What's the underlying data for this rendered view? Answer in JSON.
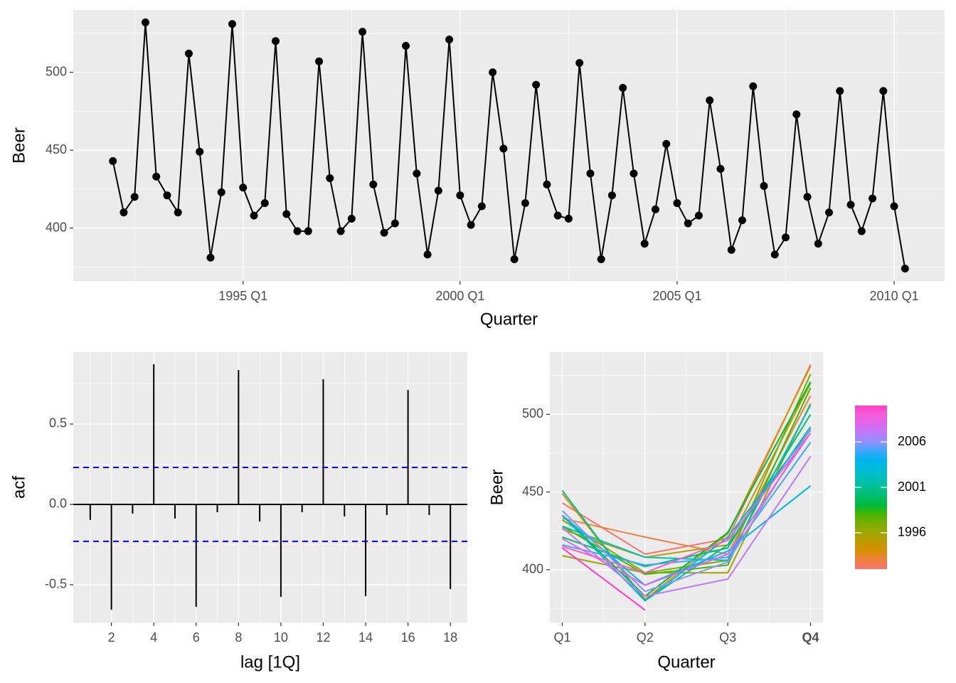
{
  "chart_data": [
    {
      "type": "line",
      "x_label": "Quarter",
      "y_label": "Beer",
      "color": "#000000",
      "categories": [
        "1992 Q1",
        "1992 Q2",
        "1992 Q3",
        "1992 Q4",
        "1993 Q1",
        "1993 Q2",
        "1993 Q3",
        "1993 Q4",
        "1994 Q1",
        "1994 Q2",
        "1994 Q3",
        "1994 Q4",
        "1995 Q1",
        "1995 Q2",
        "1995 Q3",
        "1995 Q4",
        "1996 Q1",
        "1996 Q2",
        "1996 Q3",
        "1996 Q4",
        "1997 Q1",
        "1997 Q2",
        "1997 Q3",
        "1997 Q4",
        "1998 Q1",
        "1998 Q2",
        "1998 Q3",
        "1998 Q4",
        "1999 Q1",
        "1999 Q2",
        "1999 Q3",
        "1999 Q4",
        "2000 Q1",
        "2000 Q2",
        "2000 Q3",
        "2000 Q4",
        "2001 Q1",
        "2001 Q2",
        "2001 Q3",
        "2001 Q4",
        "2002 Q1",
        "2002 Q2",
        "2002 Q3",
        "2002 Q4",
        "2003 Q1",
        "2003 Q2",
        "2003 Q3",
        "2003 Q4",
        "2004 Q1",
        "2004 Q2",
        "2004 Q3",
        "2004 Q4",
        "2005 Q1",
        "2005 Q2",
        "2005 Q3",
        "2005 Q4",
        "2006 Q1",
        "2006 Q2",
        "2006 Q3",
        "2006 Q4",
        "2007 Q1",
        "2007 Q2",
        "2007 Q3",
        "2007 Q4",
        "2008 Q1",
        "2008 Q2",
        "2008 Q3",
        "2008 Q4",
        "2009 Q1",
        "2009 Q2",
        "2009 Q3",
        "2009 Q4",
        "2010 Q1",
        "2010 Q2"
      ],
      "values": [
        443,
        410,
        420,
        532,
        433,
        421,
        410,
        512,
        449,
        381,
        423,
        531,
        426,
        408,
        416,
        520,
        409,
        398,
        398,
        507,
        432,
        398,
        406,
        526,
        428,
        397,
        403,
        517,
        435,
        383,
        424,
        521,
        421,
        402,
        414,
        500,
        451,
        380,
        416,
        492,
        428,
        408,
        406,
        506,
        435,
        380,
        421,
        490,
        435,
        390,
        412,
        454,
        416,
        403,
        408,
        482,
        438,
        386,
        405,
        491,
        427,
        383,
        394,
        473,
        420,
        390,
        410,
        488,
        415,
        398,
        419,
        488,
        414,
        374
      ],
      "xticks": [
        "1995 Q1",
        "2000 Q1",
        "2005 Q1",
        "2010 Q1"
      ],
      "ylim": [
        366,
        540
      ],
      "yticks": [
        400,
        450,
        500
      ],
      "grid": true
    },
    {
      "type": "acf",
      "x_label": "lag [1Q]",
      "y_label": "acf",
      "color": "#000000",
      "x": [
        1,
        2,
        3,
        4,
        5,
        6,
        7,
        8,
        9,
        10,
        11,
        12,
        13,
        14,
        15,
        16,
        17,
        18
      ],
      "values": [
        -0.097,
        -0.655,
        -0.058,
        0.872,
        -0.088,
        -0.637,
        -0.049,
        0.836,
        -0.106,
        -0.575,
        -0.049,
        0.779,
        -0.075,
        -0.571,
        -0.066,
        0.712,
        -0.066,
        -0.527
      ],
      "xlim": [
        0.2,
        18.8
      ],
      "xticks": [
        2,
        4,
        6,
        8,
        10,
        12,
        14,
        16,
        18
      ],
      "ylim": [
        -0.735,
        0.947
      ],
      "yticks": [
        {
          "value": -0.5,
          "label": "-0.5"
        },
        {
          "value": 0,
          "label": "0.0"
        },
        0.5
      ],
      "ci_lines": [
        0.23,
        -0.23
      ],
      "ci_color": "#0000FF",
      "grid": true
    },
    {
      "type": "seasonal",
      "x_label": "Quarter",
      "y_label": "Beer",
      "categories": [
        "Q1",
        "Q2",
        "Q3",
        "Q4"
      ],
      "series": [
        {
          "name": "1992",
          "color": "#F8766D",
          "values": [
            443,
            410,
            420,
            532
          ]
        },
        {
          "name": "1993",
          "color": "#EE8040",
          "values": [
            433,
            421,
            410,
            512
          ]
        },
        {
          "name": "1994",
          "color": "#D89000",
          "values": [
            449,
            381,
            423,
            531
          ]
        },
        {
          "name": "1995",
          "color": "#BF9A00",
          "values": [
            426,
            408,
            416,
            520
          ]
        },
        {
          "name": "1996",
          "color": "#A0A500",
          "values": [
            409,
            398,
            398,
            507
          ]
        },
        {
          "name": "1997",
          "color": "#7CAE00",
          "values": [
            432,
            398,
            406,
            526
          ]
        },
        {
          "name": "1998",
          "color": "#4AB500",
          "values": [
            428,
            397,
            403,
            517
          ]
        },
        {
          "name": "1999",
          "color": "#00BA38",
          "values": [
            435,
            383,
            424,
            521
          ]
        },
        {
          "name": "2000",
          "color": "#00BE6C",
          "values": [
            421,
            402,
            414,
            500
          ]
        },
        {
          "name": "2001",
          "color": "#00C094",
          "values": [
            451,
            380,
            416,
            492
          ]
        },
        {
          "name": "2002",
          "color": "#00BFB8",
          "values": [
            428,
            408,
            406,
            506
          ]
        },
        {
          "name": "2003",
          "color": "#00BBD6",
          "values": [
            435,
            380,
            421,
            490
          ]
        },
        {
          "name": "2004",
          "color": "#00B4EF",
          "values": [
            435,
            390,
            412,
            454
          ]
        },
        {
          "name": "2005",
          "color": "#3DA6FF",
          "values": [
            416,
            403,
            408,
            482
          ]
        },
        {
          "name": "2006",
          "color": "#8F91FF",
          "values": [
            438,
            386,
            405,
            491
          ]
        },
        {
          "name": "2007",
          "color": "#BC7AF9",
          "values": [
            427,
            383,
            394,
            473
          ]
        },
        {
          "name": "2008",
          "color": "#DD66EC",
          "values": [
            420,
            390,
            410,
            488
          ]
        },
        {
          "name": "2009",
          "color": "#F35ED6",
          "values": [
            415,
            398,
            419,
            488
          ]
        },
        {
          "name": "2010",
          "color": "#FF3DC8",
          "values": [
            414,
            374,
            null,
            null
          ]
        }
      ],
      "ylim": [
        366,
        540
      ],
      "yticks": [
        400,
        450,
        500
      ],
      "colorbar_lim": [
        1992,
        2010
      ],
      "colorbar_ticks": [
        1996,
        2001,
        2006
      ],
      "grid": true
    }
  ]
}
